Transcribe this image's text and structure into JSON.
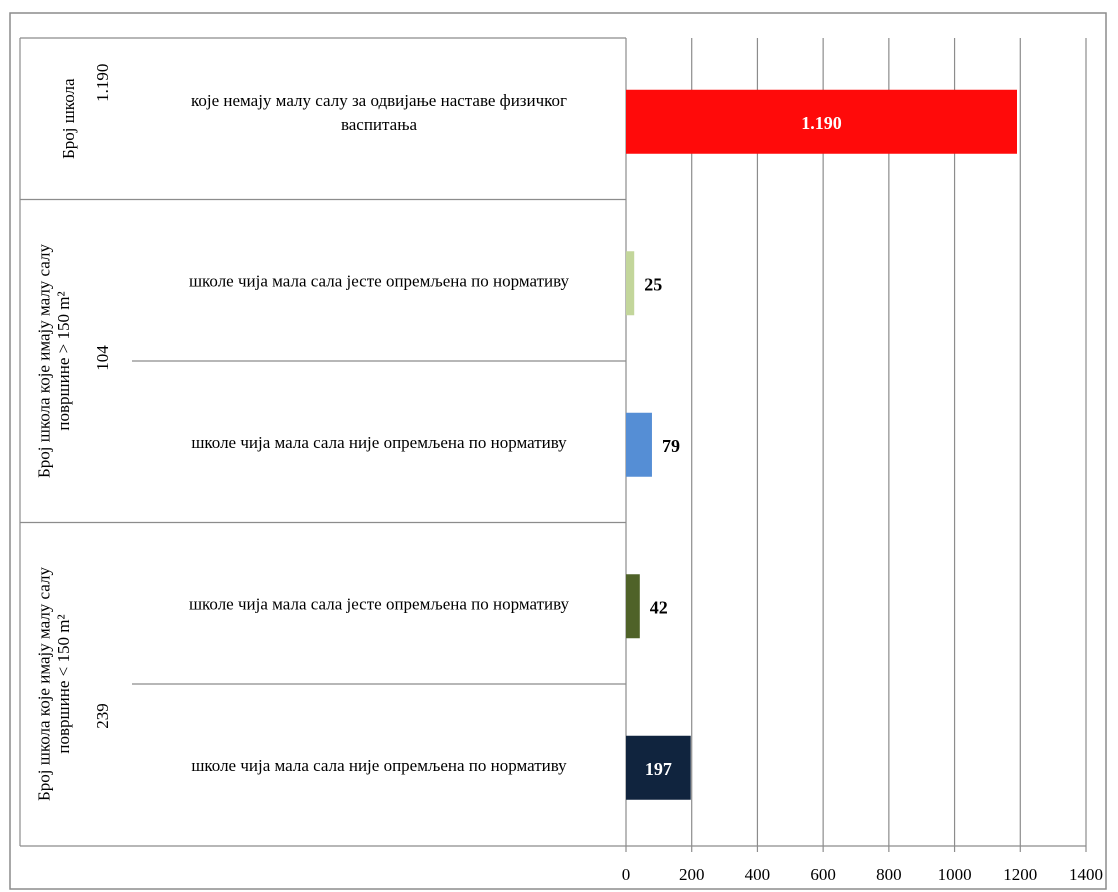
{
  "chart_data": {
    "type": "bar",
    "orientation": "horizontal",
    "xlim": [
      0,
      1400
    ],
    "xticks": [
      0,
      200,
      400,
      600,
      800,
      1000,
      1200,
      1400
    ],
    "grid": true,
    "legend": "none",
    "groups": [
      {
        "label": "Број школа",
        "count": "1.190",
        "rows": [
          {
            "category": "које немају малу салу за одвијање наставе физичког васпитања",
            "value": 1190,
            "data_label": "1.190",
            "color": "#ff0a0a",
            "label_color": "#ffffff"
          }
        ]
      },
      {
        "label": "Број школа које имају малу салу површине > 150 m²",
        "count": "104",
        "rows": [
          {
            "category": "школе чија мала сала јесте опремљена по нормативу",
            "value": 25,
            "data_label": "25",
            "color": "#c3d69b",
            "label_color": "#000000"
          },
          {
            "category": "школе чија мала сала није опремљена по нормативу",
            "value": 79,
            "data_label": "79",
            "color": "#558ed5",
            "label_color": "#000000"
          }
        ]
      },
      {
        "label": "Број школа које имају малу салу површине < 150 m²",
        "count": "239",
        "rows": [
          {
            "category": "школе чија мала сала јесте опремљена по нормативу",
            "value": 42,
            "data_label": "42",
            "color": "#4f6228",
            "label_color": "#000000"
          },
          {
            "category": "школе чија мала сала није опремљена по нормативу",
            "value": 197,
            "data_label": "197",
            "color": "#10243e",
            "label_color": "#ffffff"
          }
        ]
      }
    ]
  }
}
